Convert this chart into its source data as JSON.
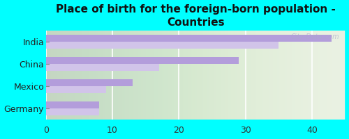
{
  "title": "Place of birth for the foreign-born population -\nCountries",
  "categories": [
    "Germany",
    "Mexico",
    "China",
    "India"
  ],
  "values_dark": [
    8,
    13,
    29,
    43
  ],
  "values_light": [
    8,
    9,
    17,
    35
  ],
  "bar_color_dark": "#b39ddb",
  "bar_color_light": "#d1c4e9",
  "background_color": "#00ffff",
  "plot_bg_color": "#e8f0e0",
  "xlim": [
    0,
    45
  ],
  "xticks": [
    0,
    10,
    20,
    30,
    40
  ],
  "title_fontsize": 11,
  "tick_label_fontsize": 9,
  "bar_height": 0.32,
  "figsize": [
    5.0,
    2.0
  ],
  "dpi": 100
}
